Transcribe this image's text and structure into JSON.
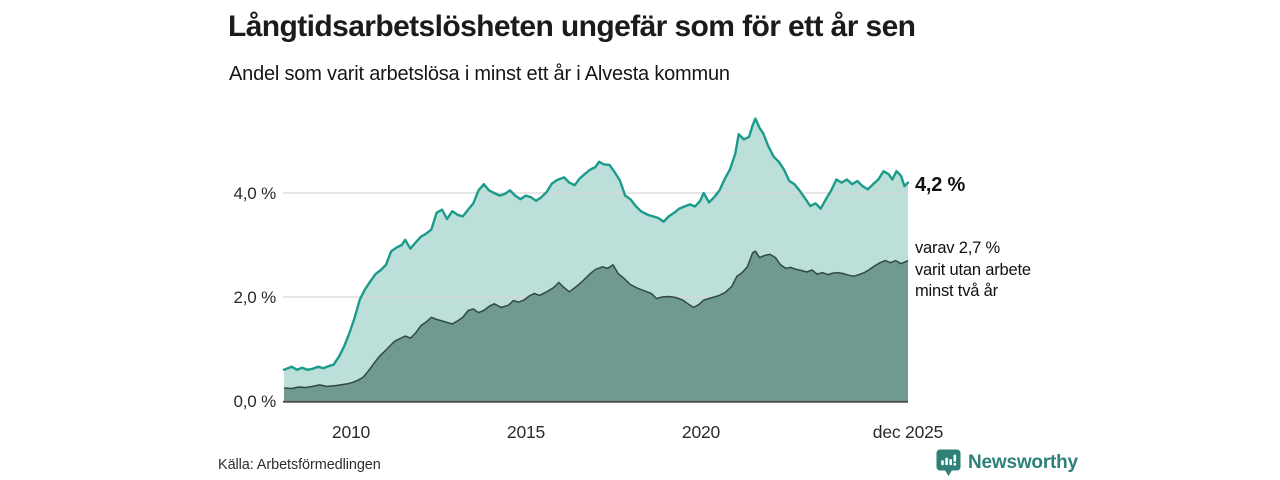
{
  "header": {
    "title": "Långtidsarbetslösheten ungefär som för ett år sen",
    "subtitle": "Andel som varit arbetslösa i minst ett år i Alvesta kommun"
  },
  "chart_data": {
    "type": "area",
    "title": "Långtidsarbetslösheten ungefär som för ett år sen",
    "subtitle": "Andel som varit arbetslösa i minst ett år i Alvesta kommun",
    "unit": "%",
    "xlim": [
      2008.05,
      2025.95
    ],
    "ylim": [
      0,
      5.6
    ],
    "grid": "horizontal",
    "legend_position": "none",
    "x_ticks": [
      {
        "value": 2010,
        "label": "2010"
      },
      {
        "value": 2015,
        "label": "2015"
      },
      {
        "value": 2020,
        "label": "2020"
      },
      {
        "value": 2025.92,
        "label": "dec 2025"
      }
    ],
    "y_ticks": [
      {
        "value": 0,
        "label": "0,0 %"
      },
      {
        "value": 2,
        "label": "2,0 %"
      },
      {
        "value": 4,
        "label": "4,0 %"
      }
    ],
    "series": [
      {
        "name": "arbetslösa minst ett år",
        "line_color": "#1a9b8b",
        "fill_color": "#bcdfda",
        "end_value": 4.2,
        "end_label": "4,2 %",
        "x": [
          2008.08,
          2008.3,
          2008.45,
          2008.6,
          2008.75,
          2008.9,
          2009.05,
          2009.2,
          2009.35,
          2009.5,
          2009.65,
          2009.8,
          2009.95,
          2010.1,
          2010.25,
          2010.4,
          2010.55,
          2010.7,
          2010.85,
          2011.0,
          2011.15,
          2011.3,
          2011.45,
          2011.55,
          2011.7,
          2011.85,
          2012.0,
          2012.15,
          2012.3,
          2012.45,
          2012.6,
          2012.75,
          2012.9,
          2013.05,
          2013.2,
          2013.35,
          2013.5,
          2013.65,
          2013.8,
          2013.95,
          2014.1,
          2014.25,
          2014.4,
          2014.55,
          2014.7,
          2014.85,
          2015.0,
          2015.15,
          2015.3,
          2015.45,
          2015.6,
          2015.75,
          2015.9,
          2016.1,
          2016.25,
          2016.4,
          2016.55,
          2016.7,
          2016.85,
          2017.0,
          2017.1,
          2017.25,
          2017.4,
          2017.55,
          2017.7,
          2017.85,
          2018.0,
          2018.15,
          2018.3,
          2018.5,
          2018.65,
          2018.8,
          2018.95,
          2019.1,
          2019.25,
          2019.4,
          2019.55,
          2019.7,
          2019.85,
          2020.0,
          2020.1,
          2020.25,
          2020.4,
          2020.55,
          2020.7,
          2020.85,
          2021.0,
          2021.1,
          2021.25,
          2021.4,
          2021.5,
          2021.58,
          2021.7,
          2021.8,
          2021.95,
          2022.1,
          2022.25,
          2022.4,
          2022.55,
          2022.7,
          2022.85,
          2023.0,
          2023.15,
          2023.3,
          2023.45,
          2023.6,
          2023.75,
          2023.9,
          2024.05,
          2024.2,
          2024.35,
          2024.5,
          2024.65,
          2024.8,
          2024.95,
          2025.1,
          2025.25,
          2025.4,
          2025.5,
          2025.62,
          2025.75,
          2025.85,
          2025.95
        ],
        "values": [
          0.6,
          0.66,
          0.6,
          0.64,
          0.6,
          0.62,
          0.66,
          0.63,
          0.67,
          0.7,
          0.85,
          1.05,
          1.3,
          1.6,
          1.95,
          2.15,
          2.3,
          2.44,
          2.52,
          2.62,
          2.88,
          2.95,
          3.0,
          3.1,
          2.93,
          3.05,
          3.16,
          3.22,
          3.3,
          3.62,
          3.68,
          3.5,
          3.65,
          3.58,
          3.55,
          3.68,
          3.8,
          4.05,
          4.17,
          4.05,
          4.0,
          3.95,
          3.98,
          4.05,
          3.95,
          3.88,
          3.95,
          3.92,
          3.85,
          3.92,
          4.02,
          4.18,
          4.25,
          4.3,
          4.2,
          4.15,
          4.28,
          4.37,
          4.45,
          4.5,
          4.6,
          4.55,
          4.54,
          4.4,
          4.24,
          3.95,
          3.88,
          3.75,
          3.65,
          3.58,
          3.55,
          3.52,
          3.45,
          3.55,
          3.62,
          3.7,
          3.74,
          3.78,
          3.74,
          3.85,
          4.0,
          3.82,
          3.92,
          4.05,
          4.27,
          4.45,
          4.75,
          5.13,
          5.03,
          5.08,
          5.3,
          5.43,
          5.25,
          5.15,
          4.9,
          4.7,
          4.6,
          4.45,
          4.23,
          4.17,
          4.04,
          3.9,
          3.75,
          3.8,
          3.7,
          3.88,
          4.05,
          4.26,
          4.2,
          4.26,
          4.17,
          4.23,
          4.13,
          4.07,
          4.17,
          4.26,
          4.42,
          4.36,
          4.26,
          4.42,
          4.33,
          4.13,
          4.2
        ]
      },
      {
        "name": "utan arbete minst två år",
        "line_color": "#2f4a44",
        "fill_color": "#70998f",
        "end_value": 2.7,
        "end_label": "varav 2,7 % varit utan arbete minst två år",
        "x": [
          2008.08,
          2008.3,
          2008.5,
          2008.7,
          2008.9,
          2009.1,
          2009.3,
          2009.5,
          2009.7,
          2009.9,
          2010.05,
          2010.2,
          2010.35,
          2010.5,
          2010.65,
          2010.8,
          2010.95,
          2011.1,
          2011.25,
          2011.4,
          2011.55,
          2011.7,
          2011.85,
          2012.0,
          2012.15,
          2012.3,
          2012.45,
          2012.6,
          2012.75,
          2012.9,
          2013.05,
          2013.2,
          2013.35,
          2013.5,
          2013.65,
          2013.8,
          2013.95,
          2014.1,
          2014.3,
          2014.5,
          2014.65,
          2014.8,
          2014.95,
          2015.1,
          2015.25,
          2015.4,
          2015.6,
          2015.8,
          2015.95,
          2016.1,
          2016.25,
          2016.45,
          2016.65,
          2016.85,
          2017.0,
          2017.2,
          2017.35,
          2017.5,
          2017.65,
          2017.8,
          2018.0,
          2018.2,
          2018.4,
          2018.6,
          2018.75,
          2018.9,
          2019.1,
          2019.3,
          2019.5,
          2019.65,
          2019.8,
          2019.95,
          2020.1,
          2020.3,
          2020.5,
          2020.7,
          2020.9,
          2021.05,
          2021.2,
          2021.35,
          2021.5,
          2021.58,
          2021.7,
          2021.85,
          2022.0,
          2022.15,
          2022.3,
          2022.45,
          2022.6,
          2022.75,
          2022.9,
          2023.05,
          2023.2,
          2023.35,
          2023.5,
          2023.65,
          2023.8,
          2023.95,
          2024.1,
          2024.25,
          2024.4,
          2024.55,
          2024.7,
          2024.85,
          2025.0,
          2025.15,
          2025.3,
          2025.45,
          2025.6,
          2025.75,
          2025.85,
          2025.95
        ],
        "values": [
          0.25,
          0.24,
          0.27,
          0.26,
          0.28,
          0.31,
          0.28,
          0.29,
          0.31,
          0.33,
          0.36,
          0.4,
          0.46,
          0.58,
          0.72,
          0.85,
          0.95,
          1.05,
          1.15,
          1.2,
          1.25,
          1.21,
          1.31,
          1.45,
          1.52,
          1.61,
          1.57,
          1.54,
          1.51,
          1.48,
          1.54,
          1.61,
          1.74,
          1.77,
          1.7,
          1.74,
          1.82,
          1.87,
          1.8,
          1.84,
          1.93,
          1.9,
          1.94,
          2.02,
          2.07,
          2.03,
          2.1,
          2.18,
          2.28,
          2.18,
          2.1,
          2.2,
          2.32,
          2.45,
          2.53,
          2.58,
          2.55,
          2.62,
          2.45,
          2.37,
          2.24,
          2.17,
          2.12,
          2.07,
          1.97,
          2.0,
          2.01,
          1.99,
          1.94,
          1.87,
          1.8,
          1.85,
          1.94,
          1.98,
          2.02,
          2.08,
          2.2,
          2.4,
          2.47,
          2.58,
          2.85,
          2.88,
          2.76,
          2.8,
          2.82,
          2.76,
          2.62,
          2.55,
          2.57,
          2.53,
          2.51,
          2.48,
          2.52,
          2.44,
          2.47,
          2.43,
          2.46,
          2.47,
          2.45,
          2.42,
          2.4,
          2.43,
          2.47,
          2.53,
          2.6,
          2.66,
          2.7,
          2.66,
          2.7,
          2.64,
          2.67,
          2.7
        ]
      }
    ],
    "annotations": {
      "primary": "4,2 %",
      "secondary_lines": [
        "varav 2,7 %",
        "varit utan arbete",
        "minst två år"
      ]
    }
  },
  "footer": {
    "source": "Källa: Arbetsförmedlingen",
    "brand": "Newsworthy"
  },
  "colors": {
    "accent_teal": "#1a9b8b",
    "light_fill": "#bcdfda",
    "dark_fill": "#70998f",
    "dark_line": "#2f4a44",
    "grid": "#d8d8d8",
    "axis": "#4d4d4d",
    "brand_teal": "#2e8078"
  }
}
